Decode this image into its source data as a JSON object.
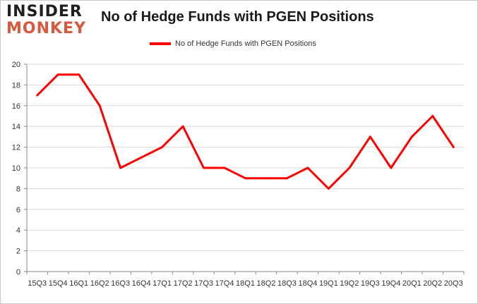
{
  "brand": {
    "line1": "INSIDER",
    "line2": "MONKEY",
    "accent": "#d9573c"
  },
  "chart_data": {
    "type": "line",
    "title": "No of Hedge Funds with PGEN Positions",
    "xlabel": "",
    "ylabel": "",
    "categories": [
      "15Q3",
      "15Q4",
      "16Q1",
      "16Q2",
      "16Q3",
      "16Q4",
      "17Q1",
      "17Q2",
      "17Q3",
      "17Q4",
      "18Q1",
      "18Q2",
      "18Q3",
      "18Q4",
      "19Q1",
      "19Q2",
      "19Q3",
      "19Q4",
      "20Q1",
      "20Q2",
      "20Q3"
    ],
    "series": [
      {
        "name": "No of Hedge Funds with PGEN Positions",
        "color": "#ff0000",
        "values": [
          17,
          19,
          19,
          16,
          10,
          11,
          12,
          14,
          10,
          10,
          9,
          9,
          9,
          10,
          8,
          10,
          13,
          10,
          13,
          15,
          12
        ]
      }
    ],
    "ylim": [
      0,
      20
    ],
    "yticks": [
      0,
      2,
      4,
      6,
      8,
      10,
      12,
      14,
      16,
      18,
      20
    ],
    "grid": true,
    "legend_position": "top"
  }
}
